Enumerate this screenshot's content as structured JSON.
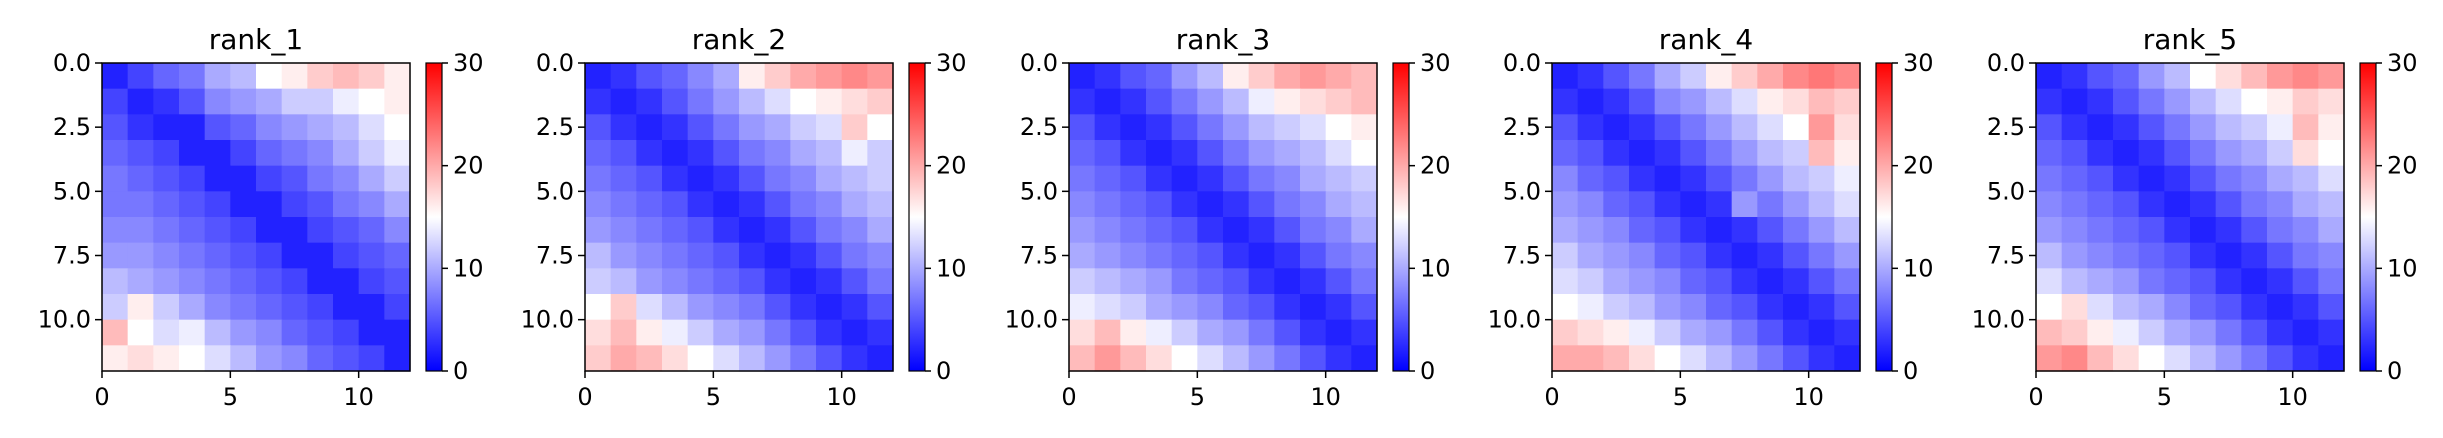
{
  "colormap": {
    "name": "bwr",
    "low": "#0000ff",
    "mid": "#ffffff",
    "high": "#ff0000",
    "vmin": 0,
    "vmax": 30,
    "ticks": [
      "0",
      "10",
      "20",
      "30"
    ]
  },
  "chart_data": [
    {
      "type": "heatmap",
      "title": "rank_1",
      "xlabel": "",
      "ylabel": "",
      "xlim": [
        0,
        12
      ],
      "ylim": [
        12,
        0
      ],
      "xticks": [
        "0",
        "5",
        "10"
      ],
      "yticks": [
        "0.0",
        "2.5",
        "5.0",
        "7.5",
        "10.0"
      ],
      "values": [
        [
          2,
          4,
          6,
          7,
          10,
          11,
          15,
          16,
          18,
          19,
          18,
          16
        ],
        [
          4,
          2,
          3,
          5,
          8,
          9,
          10,
          12,
          12,
          14,
          15,
          16
        ],
        [
          5,
          3,
          2,
          2,
          5,
          6,
          8,
          9,
          10,
          11,
          13,
          15
        ],
        [
          6,
          5,
          4,
          2,
          2,
          4,
          6,
          7,
          8,
          10,
          12,
          14
        ],
        [
          7,
          6,
          5,
          4,
          2,
          2,
          4,
          5,
          7,
          8,
          10,
          12
        ],
        [
          7,
          7,
          6,
          5,
          4,
          2,
          2,
          4,
          5,
          7,
          8,
          10
        ],
        [
          8,
          8,
          7,
          6,
          5,
          4,
          2,
          2,
          4,
          5,
          6,
          8
        ],
        [
          9,
          9,
          8,
          7,
          6,
          5,
          4,
          2,
          2,
          4,
          5,
          6
        ],
        [
          11,
          10,
          9,
          8,
          7,
          6,
          5,
          4,
          2,
          2,
          4,
          5
        ],
        [
          12,
          16,
          12,
          10,
          8,
          7,
          6,
          5,
          4,
          2,
          2,
          4
        ],
        [
          19,
          15,
          13,
          14,
          11,
          9,
          8,
          6,
          5,
          4,
          2,
          2
        ],
        [
          16,
          17,
          16,
          15,
          13,
          11,
          9,
          8,
          6,
          5,
          4,
          2
        ]
      ]
    },
    {
      "type": "heatmap",
      "title": "rank_2",
      "xlabel": "",
      "ylabel": "",
      "xlim": [
        0,
        12
      ],
      "ylim": [
        12,
        0
      ],
      "xticks": [
        "0",
        "5",
        "10"
      ],
      "yticks": [
        "0.0",
        "2.5",
        "5.0",
        "7.5",
        "10.0"
      ],
      "values": [
        [
          2,
          3,
          5,
          6,
          8,
          10,
          16,
          18,
          20,
          21,
          22,
          21
        ],
        [
          3,
          2,
          3,
          5,
          7,
          9,
          11,
          13,
          15,
          16,
          17,
          18
        ],
        [
          5,
          3,
          2,
          3,
          5,
          7,
          9,
          10,
          12,
          13,
          18,
          15
        ],
        [
          6,
          5,
          3,
          2,
          3,
          5,
          7,
          8,
          10,
          11,
          14,
          12
        ],
        [
          7,
          6,
          5,
          3,
          2,
          3,
          5,
          7,
          8,
          10,
          11,
          12
        ],
        [
          8,
          7,
          6,
          5,
          3,
          2,
          3,
          5,
          7,
          8,
          10,
          11
        ],
        [
          9,
          8,
          7,
          6,
          5,
          3,
          2,
          3,
          5,
          7,
          8,
          10
        ],
        [
          11,
          9,
          8,
          7,
          6,
          5,
          3,
          2,
          3,
          5,
          7,
          8
        ],
        [
          12,
          11,
          9,
          8,
          7,
          6,
          5,
          3,
          2,
          3,
          5,
          7
        ],
        [
          15,
          18,
          13,
          11,
          9,
          8,
          7,
          5,
          3,
          2,
          3,
          5
        ],
        [
          17,
          19,
          16,
          14,
          12,
          10,
          9,
          7,
          5,
          3,
          2,
          3
        ],
        [
          18,
          20,
          19,
          17,
          15,
          13,
          11,
          9,
          7,
          5,
          3,
          2
        ]
      ]
    },
    {
      "type": "heatmap",
      "title": "rank_3",
      "xlabel": "",
      "ylabel": "",
      "xlim": [
        0,
        12
      ],
      "ylim": [
        12,
        0
      ],
      "xticks": [
        "0",
        "5",
        "10"
      ],
      "yticks": [
        "0.0",
        "2.5",
        "5.0",
        "7.5",
        "10.0"
      ],
      "values": [
        [
          2,
          3,
          5,
          6,
          9,
          11,
          16,
          18,
          20,
          21,
          20,
          19
        ],
        [
          3,
          2,
          3,
          5,
          7,
          9,
          11,
          14,
          16,
          17,
          18,
          19
        ],
        [
          5,
          3,
          2,
          3,
          5,
          7,
          9,
          11,
          12,
          13,
          15,
          16
        ],
        [
          6,
          5,
          3,
          2,
          3,
          5,
          7,
          9,
          10,
          11,
          13,
          15
        ],
        [
          7,
          6,
          5,
          3,
          2,
          3,
          5,
          7,
          8,
          10,
          11,
          12
        ],
        [
          8,
          7,
          6,
          5,
          3,
          2,
          3,
          5,
          7,
          8,
          10,
          11
        ],
        [
          9,
          8,
          7,
          6,
          5,
          3,
          2,
          3,
          5,
          7,
          8,
          10
        ],
        [
          10,
          9,
          8,
          7,
          6,
          5,
          3,
          2,
          3,
          5,
          7,
          8
        ],
        [
          12,
          11,
          10,
          9,
          7,
          6,
          5,
          3,
          2,
          3,
          5,
          7
        ],
        [
          14,
          13,
          12,
          10,
          9,
          8,
          6,
          5,
          3,
          2,
          3,
          5
        ],
        [
          17,
          19,
          16,
          14,
          12,
          10,
          9,
          7,
          5,
          3,
          2,
          3
        ],
        [
          19,
          21,
          19,
          17,
          15,
          13,
          11,
          9,
          7,
          5,
          3,
          2
        ]
      ]
    },
    {
      "type": "heatmap",
      "title": "rank_4",
      "xlabel": "",
      "ylabel": "",
      "xlim": [
        0,
        12
      ],
      "ylim": [
        12,
        0
      ],
      "xticks": [
        "0",
        "5",
        "10"
      ],
      "yticks": [
        "0.0",
        "2.5",
        "5.0",
        "7.5",
        "10.0"
      ],
      "values": [
        [
          2,
          3,
          5,
          7,
          10,
          12,
          16,
          18,
          20,
          22,
          23,
          22
        ],
        [
          3,
          2,
          3,
          5,
          8,
          9,
          11,
          13,
          16,
          17,
          19,
          18
        ],
        [
          5,
          3,
          2,
          3,
          5,
          7,
          9,
          11,
          13,
          15,
          21,
          17
        ],
        [
          6,
          5,
          3,
          2,
          3,
          5,
          7,
          9,
          11,
          12,
          19,
          16
        ],
        [
          8,
          6,
          5,
          3,
          2,
          3,
          5,
          7,
          9,
          11,
          12,
          14
        ],
        [
          9,
          8,
          6,
          5,
          3,
          2,
          3,
          9,
          7,
          9,
          11,
          13
        ],
        [
          10,
          9,
          8,
          6,
          5,
          3,
          2,
          3,
          5,
          7,
          9,
          11
        ],
        [
          12,
          10,
          9,
          8,
          6,
          5,
          3,
          2,
          3,
          5,
          7,
          9
        ],
        [
          13,
          12,
          10,
          9,
          8,
          6,
          5,
          3,
          2,
          3,
          5,
          7
        ],
        [
          15,
          14,
          12,
          11,
          9,
          8,
          6,
          5,
          3,
          2,
          3,
          5
        ],
        [
          18,
          17,
          16,
          14,
          12,
          10,
          9,
          7,
          5,
          3,
          2,
          3
        ],
        [
          20,
          20,
          19,
          17,
          15,
          13,
          11,
          9,
          7,
          5,
          3,
          2
        ]
      ]
    },
    {
      "type": "heatmap",
      "title": "rank_5",
      "xlabel": "",
      "ylabel": "",
      "xlim": [
        0,
        12
      ],
      "ylim": [
        12,
        0
      ],
      "xticks": [
        "0",
        "5",
        "10"
      ],
      "yticks": [
        "0.0",
        "2.5",
        "5.0",
        "7.5",
        "10.0"
      ],
      "values": [
        [
          2,
          3,
          5,
          6,
          9,
          11,
          15,
          17,
          19,
          21,
          22,
          21
        ],
        [
          3,
          2,
          3,
          5,
          7,
          9,
          11,
          13,
          15,
          16,
          18,
          17
        ],
        [
          5,
          3,
          2,
          3,
          5,
          7,
          9,
          11,
          12,
          14,
          19,
          16
        ],
        [
          6,
          5,
          3,
          2,
          3,
          5,
          7,
          9,
          10,
          12,
          17,
          15
        ],
        [
          7,
          6,
          5,
          3,
          2,
          3,
          5,
          7,
          8,
          10,
          11,
          13
        ],
        [
          8,
          7,
          6,
          5,
          3,
          2,
          3,
          5,
          7,
          8,
          10,
          11
        ],
        [
          9,
          8,
          7,
          6,
          5,
          3,
          2,
          3,
          5,
          7,
          8,
          10
        ],
        [
          11,
          9,
          8,
          7,
          6,
          5,
          3,
          2,
          3,
          5,
          7,
          8
        ],
        [
          13,
          11,
          10,
          9,
          7,
          6,
          5,
          3,
          2,
          3,
          5,
          7
        ],
        [
          15,
          17,
          13,
          11,
          10,
          8,
          6,
          5,
          3,
          2,
          3,
          5
        ],
        [
          19,
          18,
          16,
          14,
          12,
          10,
          9,
          7,
          5,
          3,
          2,
          3
        ],
        [
          21,
          22,
          19,
          17,
          15,
          13,
          11,
          9,
          7,
          5,
          3,
          2
        ]
      ]
    }
  ]
}
